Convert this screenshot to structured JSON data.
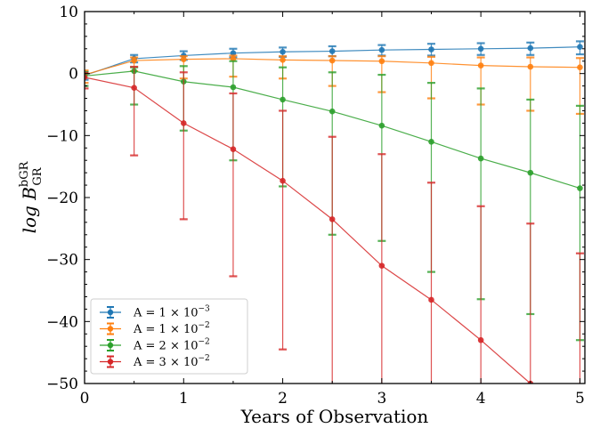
{
  "chart_data": {
    "type": "line",
    "xlabel": "Years of Observation",
    "ylabel": "log B",
    "ylabel_sup": "bGR",
    "ylabel_sub": "GR",
    "xlim": [
      0,
      5.05
    ],
    "ylim": [
      -50,
      10
    ],
    "xticks": [
      0,
      1,
      2,
      3,
      4,
      5
    ],
    "yticks": [
      -50,
      -40,
      -30,
      -20,
      -10,
      0,
      10
    ],
    "xtick_labels": [
      "0",
      "1",
      "2",
      "3",
      "4",
      "5"
    ],
    "ytick_labels": [
      "−50",
      "−40",
      "−30",
      "−20",
      "−10",
      "0",
      "10"
    ],
    "legend_position": "lower-left",
    "grid": false,
    "series": [
      {
        "name": "A = 1 × 10",
        "exp": "−3",
        "color": "#1f77b4",
        "x": [
          0,
          0.5,
          1,
          1.5,
          2,
          2.5,
          3,
          3.5,
          4,
          4.5,
          5
        ],
        "y": [
          -0.3,
          2.4,
          2.9,
          3.3,
          3.5,
          3.6,
          3.8,
          3.9,
          4.0,
          4.1,
          4.3
        ],
        "yerr_low": [
          -1.0,
          1.8,
          2.2,
          2.6,
          2.7,
          2.8,
          2.9,
          2.9,
          3.0,
          3.0,
          3.1
        ],
        "yerr_high": [
          0.3,
          3.0,
          3.6,
          4.0,
          4.2,
          4.4,
          4.6,
          4.8,
          4.9,
          5.0,
          5.2
        ]
      },
      {
        "name": "A = 1 × 10",
        "exp": "−2",
        "color": "#ff7f0e",
        "x": [
          0,
          0.5,
          1,
          1.5,
          2,
          2.5,
          3,
          3.5,
          4,
          4.5,
          5
        ],
        "y": [
          -0.2,
          2.1,
          2.3,
          2.4,
          2.2,
          2.1,
          2.0,
          1.7,
          1.3,
          1.1,
          1.0
        ],
        "yerr_low": [
          -1.5,
          0.4,
          -0.8,
          -0.5,
          -0.8,
          -2.0,
          -3.0,
          -4.0,
          -5.0,
          -6.0,
          -6.5
        ],
        "yerr_high": [
          0.5,
          2.6,
          2.8,
          2.9,
          2.8,
          2.8,
          2.8,
          2.7,
          2.6,
          2.6,
          2.5
        ]
      },
      {
        "name": "A = 2 × 10",
        "exp": "−2",
        "color": "#2ca02c",
        "x": [
          0,
          0.5,
          1,
          1.5,
          2,
          2.5,
          3,
          3.5,
          4,
          4.5,
          5
        ],
        "y": [
          -0.4,
          0.4,
          -1.3,
          -2.2,
          -4.2,
          -6.1,
          -8.4,
          -11.0,
          -13.7,
          -16.0,
          -18.5
        ],
        "yerr_low": [
          -2.0,
          -5.0,
          -9.2,
          -14.0,
          -18.2,
          -26.0,
          -27.0,
          -32.0,
          -36.4,
          -38.8,
          -43.0
        ],
        "yerr_high": [
          0.2,
          1.0,
          1.2,
          2.0,
          1.0,
          0.2,
          -0.2,
          -1.5,
          -2.4,
          -4.2,
          -5.2
        ]
      },
      {
        "name": "A = 3 × 10",
        "exp": "−2",
        "color": "#d62728",
        "x": [
          0,
          0.5,
          1,
          1.5,
          2,
          2.5,
          3,
          3.5,
          4,
          4.5,
          5
        ],
        "y": [
          -0.6,
          -2.3,
          -8.0,
          -12.2,
          -17.3,
          -23.5,
          -31.0,
          -36.5,
          -43.0,
          -50.0,
          -56.0
        ],
        "yerr_low": [
          -2.4,
          -13.2,
          -23.5,
          -32.7,
          -44.5,
          -60.0,
          -60.0,
          -60.0,
          -60.0,
          -60.0,
          -60.0
        ],
        "yerr_high": [
          0.1,
          1.1,
          0.2,
          -3.2,
          -6.0,
          -10.2,
          -13.0,
          -17.6,
          -21.4,
          -24.2,
          -29.0
        ]
      }
    ]
  }
}
